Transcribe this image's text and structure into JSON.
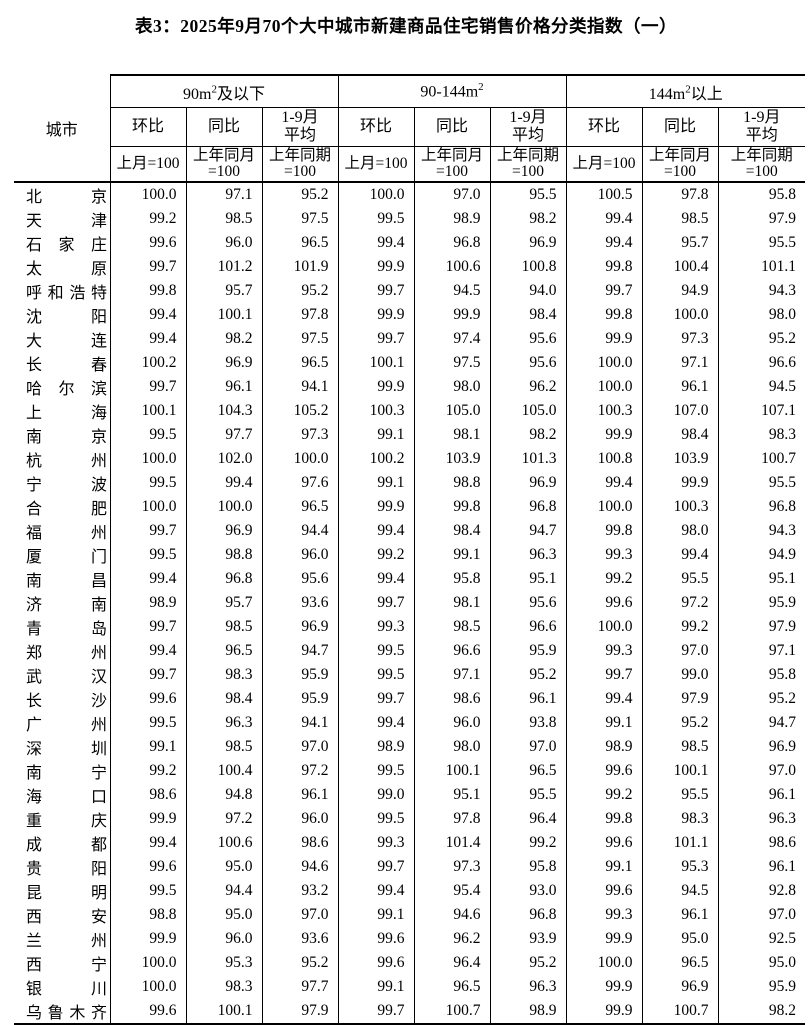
{
  "title": "表3：2025年9月70个大中城市新建商品住宅销售价格分类指数（一）",
  "table": {
    "city_header": "城市",
    "groups": [
      {
        "label_pre": "90m",
        "label_sup": "2",
        "label_post": "及以下",
        "cols": [
          {
            "top": "环比",
            "basis": "上月=100"
          },
          {
            "top": "同比",
            "basis": "上年同月\n=100"
          },
          {
            "top": "1-9月\n平均",
            "basis": "上年同期\n=100"
          }
        ]
      },
      {
        "label_pre": "90-144m",
        "label_sup": "2",
        "label_post": "",
        "cols": [
          {
            "top": "环比",
            "basis": "上月=100"
          },
          {
            "top": "同比",
            "basis": "上年同月\n=100"
          },
          {
            "top": "1-9月\n平均",
            "basis": "上年同期\n=100"
          }
        ]
      },
      {
        "label_pre": "144m",
        "label_sup": "2",
        "label_post": "以上",
        "cols": [
          {
            "top": "环比",
            "basis": "上月=100"
          },
          {
            "top": "同比",
            "basis": "上年同月\n=100"
          },
          {
            "top": "1-9月\n平均",
            "basis": "上年同期\n=100"
          }
        ]
      }
    ],
    "rows": [
      {
        "city": "北京",
        "values": [
          "100.0",
          "97.1",
          "95.2",
          "100.0",
          "97.0",
          "95.5",
          "100.5",
          "97.8",
          "95.8"
        ]
      },
      {
        "city": "天津",
        "values": [
          "99.2",
          "98.5",
          "97.5",
          "99.5",
          "98.9",
          "98.2",
          "99.4",
          "98.5",
          "97.9"
        ]
      },
      {
        "city": "石家庄",
        "values": [
          "99.6",
          "96.0",
          "96.5",
          "99.4",
          "96.8",
          "96.9",
          "99.4",
          "95.7",
          "95.5"
        ]
      },
      {
        "city": "太原",
        "values": [
          "99.7",
          "101.2",
          "101.9",
          "99.9",
          "100.6",
          "100.8",
          "99.8",
          "100.4",
          "101.1"
        ]
      },
      {
        "city": "呼和浩特",
        "values": [
          "99.8",
          "95.7",
          "95.2",
          "99.7",
          "94.5",
          "94.0",
          "99.7",
          "94.9",
          "94.3"
        ]
      },
      {
        "city": "沈阳",
        "values": [
          "99.4",
          "100.1",
          "97.8",
          "99.9",
          "99.9",
          "98.4",
          "99.8",
          "100.0",
          "98.0"
        ]
      },
      {
        "city": "大连",
        "values": [
          "99.4",
          "98.2",
          "97.5",
          "99.7",
          "97.4",
          "95.6",
          "99.9",
          "97.3",
          "95.2"
        ]
      },
      {
        "city": "长春",
        "values": [
          "100.2",
          "96.9",
          "96.5",
          "100.1",
          "97.5",
          "95.6",
          "100.0",
          "97.1",
          "96.6"
        ]
      },
      {
        "city": "哈尔滨",
        "values": [
          "99.7",
          "96.1",
          "94.1",
          "99.9",
          "98.0",
          "96.2",
          "100.0",
          "96.1",
          "94.5"
        ]
      },
      {
        "city": "上海",
        "values": [
          "100.1",
          "104.3",
          "105.2",
          "100.3",
          "105.0",
          "105.0",
          "100.3",
          "107.0",
          "107.1"
        ]
      },
      {
        "city": "南京",
        "values": [
          "99.5",
          "97.7",
          "97.3",
          "99.1",
          "98.1",
          "98.2",
          "99.9",
          "98.4",
          "98.3"
        ]
      },
      {
        "city": "杭州",
        "values": [
          "100.0",
          "102.0",
          "100.0",
          "100.2",
          "103.9",
          "101.3",
          "100.8",
          "103.9",
          "100.7"
        ]
      },
      {
        "city": "宁波",
        "values": [
          "99.5",
          "99.4",
          "97.6",
          "99.1",
          "98.8",
          "96.9",
          "99.4",
          "99.9",
          "95.5"
        ]
      },
      {
        "city": "合肥",
        "values": [
          "100.0",
          "100.0",
          "96.5",
          "99.9",
          "99.8",
          "96.8",
          "100.0",
          "100.3",
          "96.8"
        ]
      },
      {
        "city": "福州",
        "values": [
          "99.7",
          "96.9",
          "94.4",
          "99.4",
          "98.4",
          "94.7",
          "99.8",
          "98.0",
          "94.3"
        ]
      },
      {
        "city": "厦门",
        "values": [
          "99.5",
          "98.8",
          "96.0",
          "99.2",
          "99.1",
          "96.3",
          "99.3",
          "99.4",
          "94.9"
        ]
      },
      {
        "city": "南昌",
        "values": [
          "99.4",
          "96.8",
          "95.6",
          "99.4",
          "95.8",
          "95.1",
          "99.2",
          "95.5",
          "95.1"
        ]
      },
      {
        "city": "济南",
        "values": [
          "98.9",
          "95.7",
          "93.6",
          "99.7",
          "98.1",
          "95.6",
          "99.6",
          "97.2",
          "95.9"
        ]
      },
      {
        "city": "青岛",
        "values": [
          "99.7",
          "98.5",
          "96.9",
          "99.3",
          "98.5",
          "96.6",
          "100.0",
          "99.2",
          "97.9"
        ]
      },
      {
        "city": "郑州",
        "values": [
          "99.4",
          "96.5",
          "94.7",
          "99.5",
          "96.6",
          "95.9",
          "99.3",
          "97.0",
          "97.1"
        ]
      },
      {
        "city": "武汉",
        "values": [
          "99.7",
          "98.3",
          "95.9",
          "99.5",
          "97.1",
          "95.2",
          "99.7",
          "99.0",
          "95.8"
        ]
      },
      {
        "city": "长沙",
        "values": [
          "99.6",
          "98.4",
          "95.9",
          "99.7",
          "98.6",
          "96.1",
          "99.4",
          "97.9",
          "95.2"
        ]
      },
      {
        "city": "广州",
        "values": [
          "99.5",
          "96.3",
          "94.1",
          "99.4",
          "96.0",
          "93.8",
          "99.1",
          "95.2",
          "94.7"
        ]
      },
      {
        "city": "深圳",
        "values": [
          "99.1",
          "98.5",
          "97.0",
          "98.9",
          "98.0",
          "97.0",
          "98.9",
          "98.5",
          "96.9"
        ]
      },
      {
        "city": "南宁",
        "values": [
          "99.2",
          "100.4",
          "97.2",
          "99.5",
          "100.1",
          "96.5",
          "99.6",
          "100.1",
          "97.0"
        ]
      },
      {
        "city": "海口",
        "values": [
          "98.6",
          "94.8",
          "96.1",
          "99.0",
          "95.1",
          "95.5",
          "99.2",
          "95.5",
          "96.1"
        ]
      },
      {
        "city": "重庆",
        "values": [
          "99.9",
          "97.2",
          "96.0",
          "99.5",
          "97.8",
          "96.4",
          "99.8",
          "98.3",
          "96.3"
        ]
      },
      {
        "city": "成都",
        "values": [
          "99.4",
          "100.6",
          "98.6",
          "99.3",
          "101.4",
          "99.2",
          "99.6",
          "101.1",
          "98.6"
        ]
      },
      {
        "city": "贵阳",
        "values": [
          "99.6",
          "95.0",
          "94.6",
          "99.7",
          "97.3",
          "95.8",
          "99.1",
          "95.3",
          "96.1"
        ]
      },
      {
        "city": "昆明",
        "values": [
          "99.5",
          "94.4",
          "93.2",
          "99.4",
          "95.4",
          "93.0",
          "99.6",
          "94.5",
          "92.8"
        ]
      },
      {
        "city": "西安",
        "values": [
          "98.8",
          "95.0",
          "97.0",
          "99.1",
          "94.6",
          "96.8",
          "99.3",
          "96.1",
          "97.0"
        ]
      },
      {
        "city": "兰州",
        "values": [
          "99.9",
          "96.0",
          "93.6",
          "99.6",
          "96.2",
          "93.9",
          "99.9",
          "95.0",
          "92.5"
        ]
      },
      {
        "city": "西宁",
        "values": [
          "100.0",
          "95.3",
          "95.2",
          "99.6",
          "96.4",
          "95.2",
          "100.0",
          "96.5",
          "95.0"
        ]
      },
      {
        "city": "银川",
        "values": [
          "100.0",
          "98.3",
          "97.7",
          "99.1",
          "96.5",
          "96.3",
          "99.9",
          "96.9",
          "95.9"
        ]
      },
      {
        "city": "乌鲁木齐",
        "values": [
          "99.6",
          "100.1",
          "97.9",
          "99.7",
          "100.7",
          "98.9",
          "99.9",
          "100.7",
          "98.2"
        ]
      }
    ]
  }
}
